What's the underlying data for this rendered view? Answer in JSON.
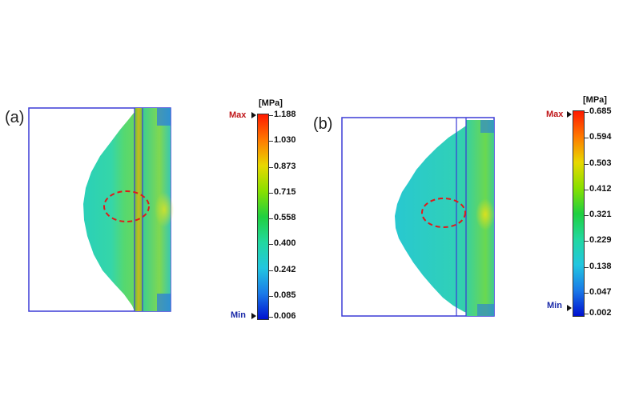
{
  "panels": [
    {
      "label": "(a)",
      "unit": "[MPa]",
      "max_label": "Max",
      "min_label": "Min",
      "ticks": [
        "1.188",
        "1.030",
        "0.873",
        "0.715",
        "0.558",
        "0.400",
        "0.242",
        "0.085",
        "0.006"
      ]
    },
    {
      "label": "(b)",
      "unit": "[MPa]",
      "max_label": "Max",
      "min_label": "Min",
      "ticks": [
        "0.685",
        "0.594",
        "0.503",
        "0.412",
        "0.321",
        "0.229",
        "0.138",
        "0.047",
        "0.002"
      ]
    }
  ],
  "colors": {
    "frame": "#3b3bd6",
    "max_label": "#c0181b",
    "min_label": "#1a2aa8",
    "marker": "#e01a1a",
    "scale_gradient": [
      "#ff1a00",
      "#ff7a00",
      "#e8d800",
      "#88e000",
      "#1fd040",
      "#22d8a0",
      "#22c6e0",
      "#1a7ae8",
      "#0010d0"
    ]
  }
}
